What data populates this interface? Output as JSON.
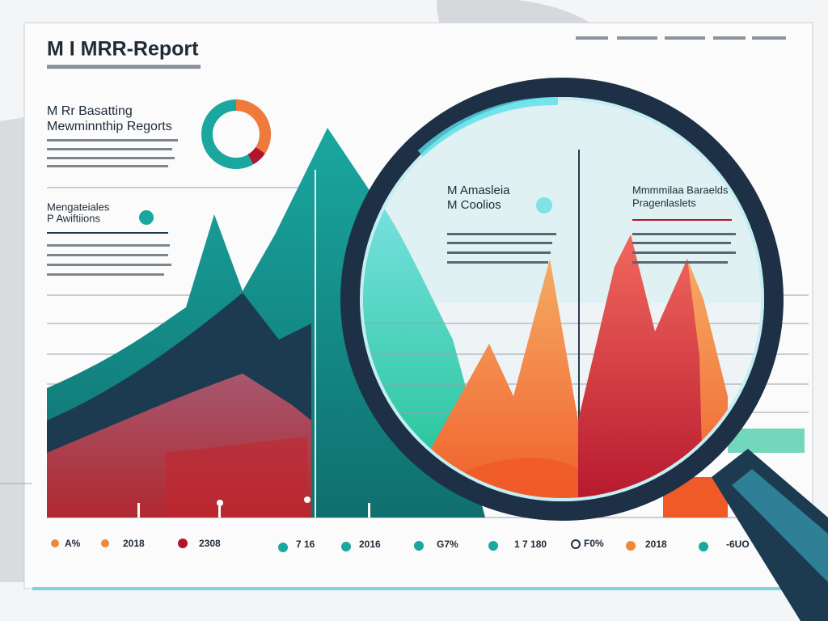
{
  "header": {
    "title": "M I MRR-Report"
  },
  "left_panel": {
    "heading": [
      "M Rr Basatting",
      "Mewminnthip Regorts"
    ],
    "subheading": [
      "Mengateiales",
      "P Awiftiions"
    ]
  },
  "lens_panel": {
    "heading": [
      "M Amasleia",
      "M Coolios"
    ]
  },
  "right_panel": {
    "heading": [
      "Mmmmilaa Baraelds",
      "Pragenlaslets"
    ]
  },
  "footer_labels": [
    "A%",
    "2018",
    "2308",
    "7 16",
    "2016",
    "G7%",
    "1 7 180",
    "F0%",
    "2018",
    "-6UO"
  ]
}
